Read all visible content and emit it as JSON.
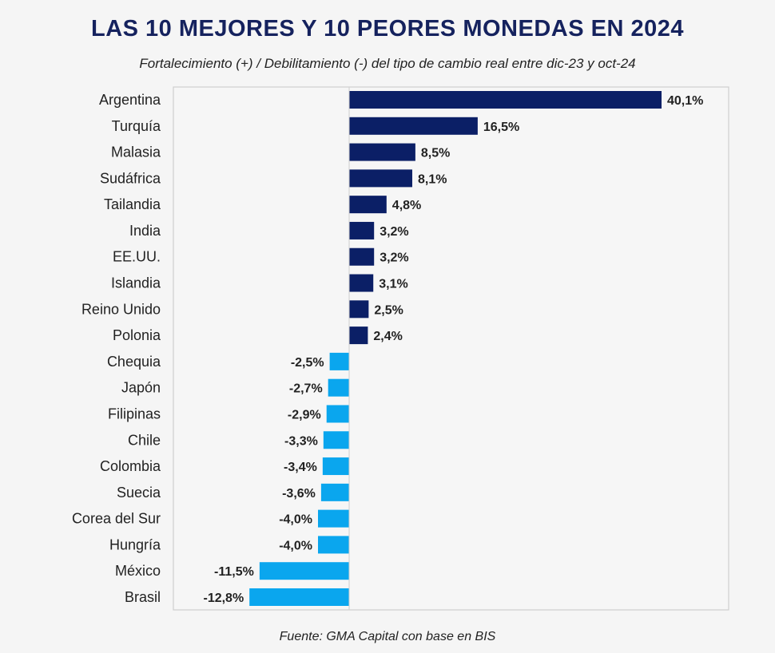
{
  "chart_data": {
    "type": "bar",
    "orientation": "horizontal",
    "title": "LAS 10 MEJORES Y 10 PEORES MONEDAS EN 2024",
    "subtitle": "Fortalecimiento (+) / Debilitamiento (-) del tipo de cambio real entre dic-23 y oct-24",
    "source": "Fuente: GMA Capital con base en BIS",
    "categories": [
      "Argentina",
      "Turquía",
      "Malasia",
      "Sudáfrica",
      "Tailandia",
      "India",
      "EE.UU.",
      "Islandia",
      "Reino Unido",
      "Polonia",
      "Chequia",
      "Japón",
      "Filipinas",
      "Chile",
      "Colombia",
      "Suecia",
      "Corea del Sur",
      "Hungría",
      "México",
      "Brasil"
    ],
    "values": [
      40.1,
      16.5,
      8.5,
      8.1,
      4.8,
      3.2,
      3.2,
      3.1,
      2.5,
      2.4,
      -2.5,
      -2.7,
      -2.9,
      -3.3,
      -3.4,
      -3.6,
      -4.0,
      -4.0,
      -11.5,
      -12.8
    ],
    "data_labels": [
      "40,1%",
      "16,5%",
      "8,5%",
      "8,1%",
      "4,8%",
      "3,2%",
      "3,2%",
      "3,1%",
      "2,5%",
      "2,4%",
      "-2,5%",
      "-2,7%",
      "-2,9%",
      "-3,3%",
      "-3,4%",
      "-3,6%",
      "-4,0%",
      "-4,0%",
      "-11,5%",
      "-12,8%"
    ],
    "xlabel": "",
    "ylabel": "",
    "grid": false,
    "colors": {
      "positive": "#0b1f66",
      "negative": "#0aa6ee",
      "title": "#15225e"
    }
  }
}
